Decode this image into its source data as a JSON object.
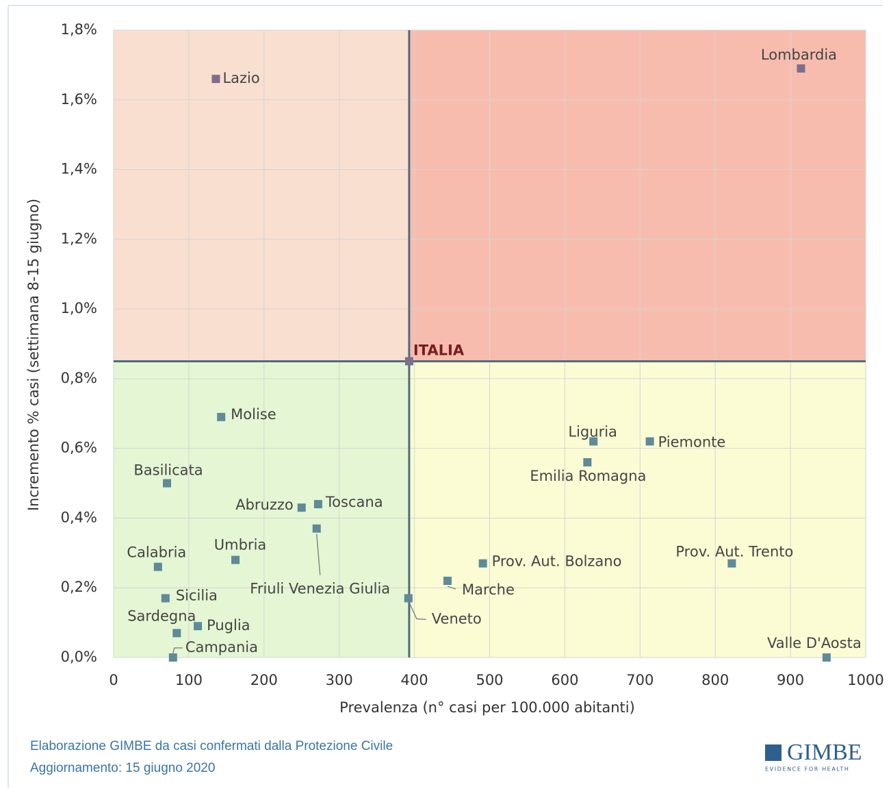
{
  "chart_data": {
    "type": "scatter",
    "x_label": "Prevalenza  (n° casi per 100.000 abitanti)",
    "y_label": "Incremento %  casi (settimana 8-15 giugno)",
    "labels": [
      "Lazio",
      "Lombardia",
      "Molise",
      "Liguria",
      "Piemonte",
      "Emilia Romagna",
      "Basilicata",
      "Abruzzo",
      "Toscana",
      "Friuli Venezia Giulia",
      "Umbria",
      "Calabria",
      "Prov.  Aut. Bolzano",
      "Prov.  Aut. Trento",
      "Marche",
      "Sicilia",
      "Veneto",
      "Puglia",
      "Sardegna",
      "Campania",
      "Valle D'Aosta"
    ],
    "x": [
      136,
      914,
      143,
      638,
      713,
      630,
      71,
      250,
      272,
      270,
      162,
      59,
      491,
      822,
      444,
      69,
      392,
      112,
      84,
      79,
      948
    ],
    "values": [
      1.66,
      1.69,
      0.69,
      0.62,
      0.62,
      0.56,
      0.5,
      0.43,
      0.44,
      0.37,
      0.28,
      0.26,
      0.27,
      0.27,
      0.22,
      0.17,
      0.17,
      0.09,
      0.07,
      0.0,
      0.0
    ],
    "color": "#5e8a99",
    "reference": {
      "label": "ITALIA",
      "x": 393,
      "y": 0.85
    },
    "xlim": [
      0,
      1000
    ],
    "ylim": [
      0,
      1.8
    ],
    "xticks": [
      0,
      100,
      200,
      300,
      400,
      500,
      600,
      700,
      800,
      900,
      1000
    ],
    "yticks": [
      {
        "value": 0,
        "label": "0,0%"
      },
      {
        "value": 0.2,
        "label": "0,2%"
      },
      {
        "value": 0.4,
        "label": "0,4%"
      },
      {
        "value": 0.6,
        "label": "0,6%"
      },
      {
        "value": 0.8,
        "label": "0,8%"
      },
      {
        "value": 1.0,
        "label": "1,0%"
      },
      {
        "value": 1.2,
        "label": "1,2%"
      },
      {
        "value": 1.4,
        "label": "1,4%"
      },
      {
        "value": 1.6,
        "label": "1,6%"
      },
      {
        "value": 1.8,
        "label": "1,8%"
      }
    ],
    "grid": true,
    "quadrant_colors": [
      "#f9dfd0",
      "#f8bcae",
      "#e4f6d3",
      "#fbfcd4"
    ]
  },
  "footer": {
    "source": "Elaborazione GIMBE da casi confermati dalla Protezione Civile",
    "updated": "Aggiornamento: 15 giugno 2020",
    "logo": "GIMBE",
    "tagline": "EVIDENCE FOR HEALTH"
  }
}
